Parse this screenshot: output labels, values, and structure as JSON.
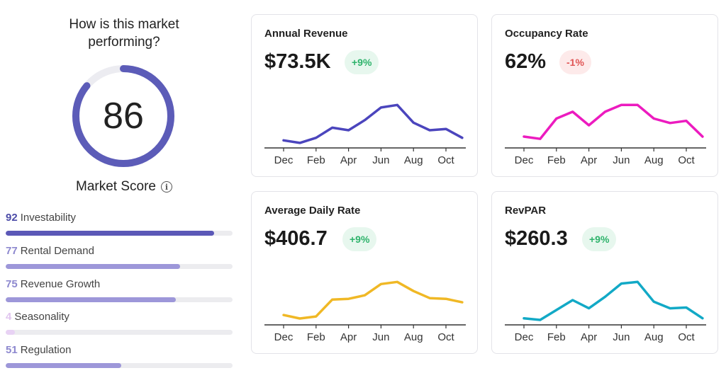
{
  "market": {
    "question": "How is this market performing?",
    "score": "86",
    "score_value": 86,
    "score_label": "Market Score",
    "info_icon": "i",
    "colors": {
      "gauge": "#5c5cb8",
      "gauge_track": "#ececf1"
    }
  },
  "metrics": [
    {
      "value": "92",
      "label": "Investability",
      "percent": 92,
      "num_color": "#4c4ca8",
      "bar_color": "#5b58b7"
    },
    {
      "value": "77",
      "label": "Rental Demand",
      "percent": 77,
      "num_color": "#8d88cf",
      "bar_color": "#9d97d9"
    },
    {
      "value": "75",
      "label": "Revenue Growth",
      "percent": 75,
      "num_color": "#8d88cf",
      "bar_color": "#9d97d9"
    },
    {
      "value": "4",
      "label": "Seasonality",
      "percent": 4,
      "num_color": "#e1c6ef",
      "bar_color": "#e8d2f4"
    },
    {
      "value": "51",
      "label": "Regulation",
      "percent": 51,
      "num_color": "#8d88cf",
      "bar_color": "#9d97d9"
    }
  ],
  "cards": [
    {
      "title": "Annual Revenue",
      "value": "$73.5K",
      "change": "+9%",
      "direction": "up",
      "color": "#4b45bd",
      "series": [
        3,
        2,
        4,
        8,
        7,
        11,
        16,
        17,
        10,
        7,
        7.5,
        4
      ]
    },
    {
      "title": "Occupancy Rate",
      "value": "62%",
      "change": "-1%",
      "direction": "down",
      "color": "#ec1bbf",
      "series": [
        5,
        4,
        13,
        16,
        10,
        16,
        19,
        19,
        13,
        11,
        12,
        5
      ]
    },
    {
      "title": "Average Daily Rate",
      "value": "$406.7",
      "change": "+9%",
      "direction": "up",
      "color": "#f0b825",
      "series": [
        7,
        4.5,
        6,
        18,
        18.5,
        21,
        29,
        30.5,
        24,
        19,
        18.5,
        16
      ]
    },
    {
      "title": "RevPAR",
      "value": "$260.3",
      "change": "+9%",
      "direction": "up",
      "color": "#12a9c6",
      "series": [
        4,
        3,
        9,
        15,
        10,
        17,
        25,
        26,
        14,
        10,
        10.5,
        4
      ]
    }
  ],
  "x_axis_labels": [
    "Dec",
    "Feb",
    "Apr",
    "Jun",
    "Aug",
    "Oct"
  ]
}
